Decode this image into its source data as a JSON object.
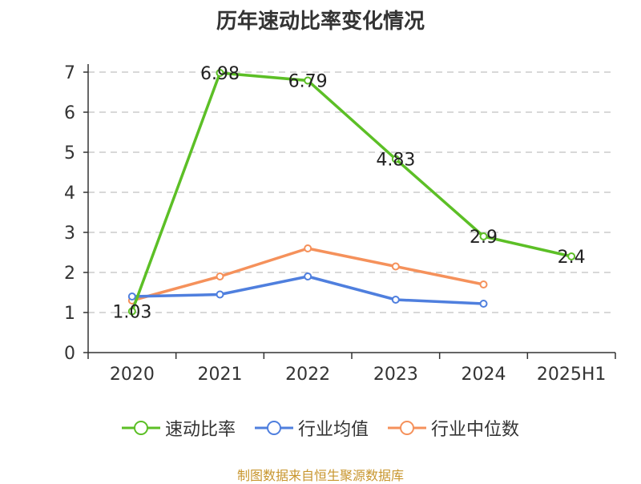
{
  "title": "历年速动比率变化情况",
  "source_text": "制图数据来自恒生聚源数据库",
  "legend": [
    {
      "label": "速动比率",
      "color": "#5cbf26"
    },
    {
      "label": "行业均值",
      "color": "#4f7fde"
    },
    {
      "label": "行业中位数",
      "color": "#f5915b"
    }
  ],
  "chart_data": {
    "type": "line",
    "categories": [
      "2020",
      "2021",
      "2022",
      "2023",
      "2024",
      "2025H1"
    ],
    "ylim": [
      0,
      7
    ],
    "yticks": [
      0,
      1,
      2,
      3,
      4,
      5,
      6,
      7
    ],
    "grid": true,
    "legend_position": "bottom",
    "series": [
      {
        "name": "速动比率",
        "color": "#5cbf26",
        "values": [
          1.03,
          6.98,
          6.79,
          4.83,
          2.9,
          2.4
        ],
        "labels": [
          "1.03",
          "6.98",
          "6.79",
          "4.83",
          "2.9",
          "2.4"
        ]
      },
      {
        "name": "行业均值",
        "color": "#4f7fde",
        "values": [
          1.4,
          1.45,
          1.9,
          1.32,
          1.22,
          null
        ]
      },
      {
        "name": "行业中位数",
        "color": "#f5915b",
        "values": [
          1.3,
          1.9,
          2.6,
          2.15,
          1.7,
          null
        ]
      }
    ]
  }
}
